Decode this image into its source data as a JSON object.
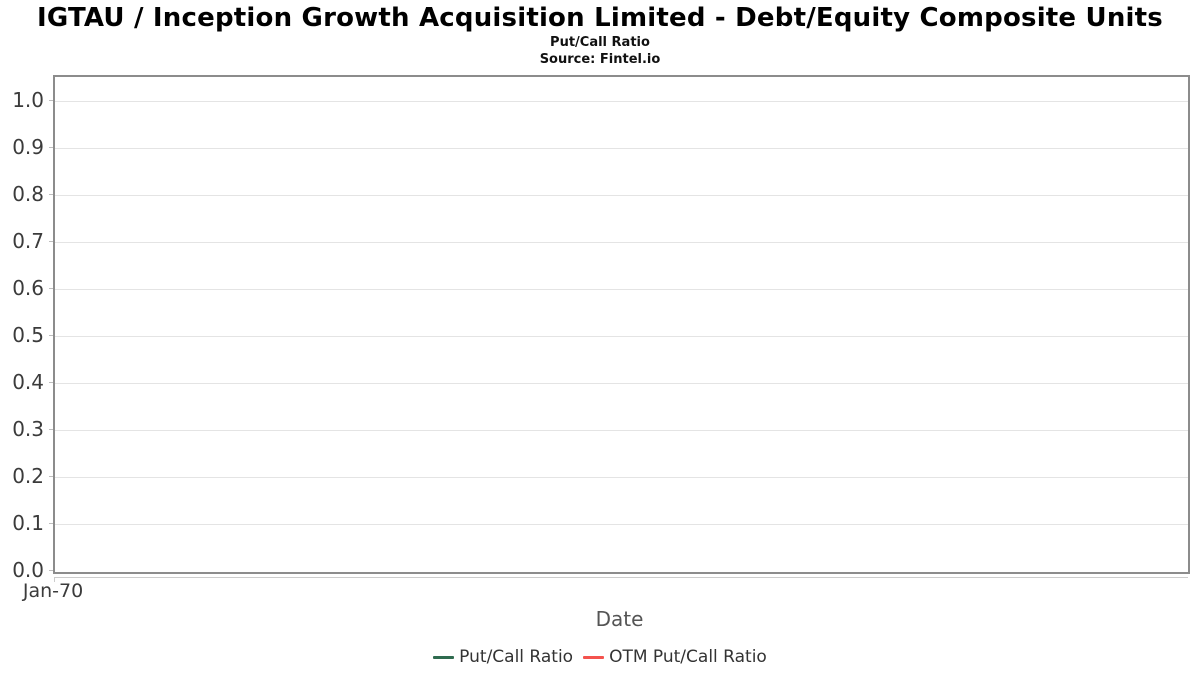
{
  "header": {
    "title": "IGTAU / Inception Growth Acquisition Limited - Debt/Equity Composite Units",
    "subtitle": "Put/Call Ratio",
    "source": "Source: Fintel.io"
  },
  "colors": {
    "plot_border": "#8c8c8c",
    "gridline": "#e4e4e4",
    "axis_line": "#cccccc",
    "tick_text": "#3b3b3b",
    "axis_title_text": "#555555",
    "legend_text": "#333333",
    "series_put_call": "#2f6b4f",
    "series_otm_put_call": "#f4534e"
  },
  "chart_data": {
    "type": "line",
    "title": "IGTAU / Inception Growth Acquisition Limited - Debt/Equity Composite Units",
    "subtitle": "Put/Call Ratio",
    "source": "Source: Fintel.io",
    "xlabel": "Date",
    "ylabel": "",
    "x_tick_labels": [
      "Jan-70"
    ],
    "y_tick_labels": [
      "0.0",
      "0.1",
      "0.2",
      "0.3",
      "0.4",
      "0.5",
      "0.6",
      "0.7",
      "0.8",
      "0.9",
      "1.0"
    ],
    "ylim": [
      0,
      1.05
    ],
    "grid": "horizontal",
    "legend_position": "bottom-center",
    "series": [
      {
        "name": "Put/Call Ratio",
        "color": "#2f6b4f",
        "x": [],
        "y": []
      },
      {
        "name": "OTM Put/Call Ratio",
        "color": "#f4534e",
        "x": [],
        "y": []
      }
    ]
  }
}
